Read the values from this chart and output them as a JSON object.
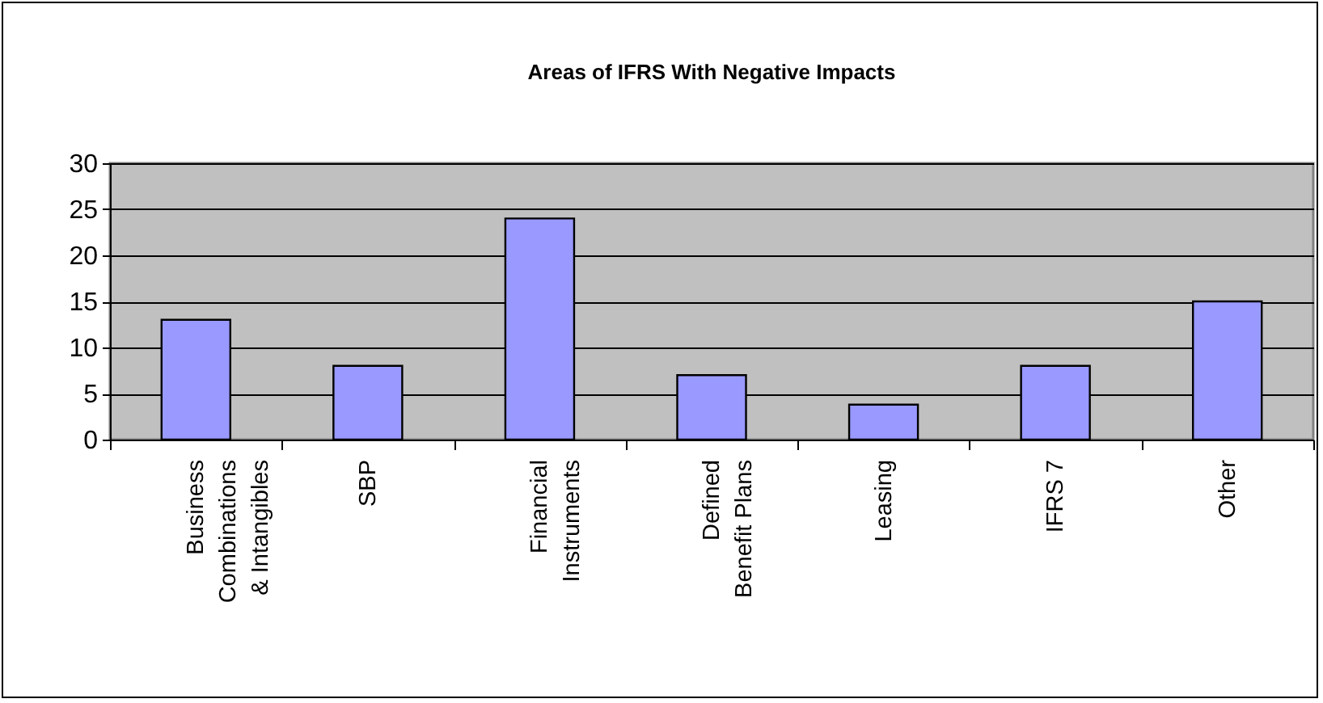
{
  "chart_data": {
    "type": "bar",
    "title": "Areas of IFRS With Negative Impacts",
    "categories": [
      "Business\nCombinations\n& Intangibles",
      "SBP",
      "Financial\nInstruments",
      "Defined\nBenefit  Plans",
      "Leasing",
      "IFRS 7",
      "Other"
    ],
    "values": [
      13,
      8,
      24,
      7,
      3.8,
      8,
      15
    ],
    "color": "#9999ff",
    "ylim": [
      0,
      30
    ],
    "yticks": [
      0,
      5,
      10,
      15,
      20,
      25,
      30
    ],
    "grid": "y"
  }
}
